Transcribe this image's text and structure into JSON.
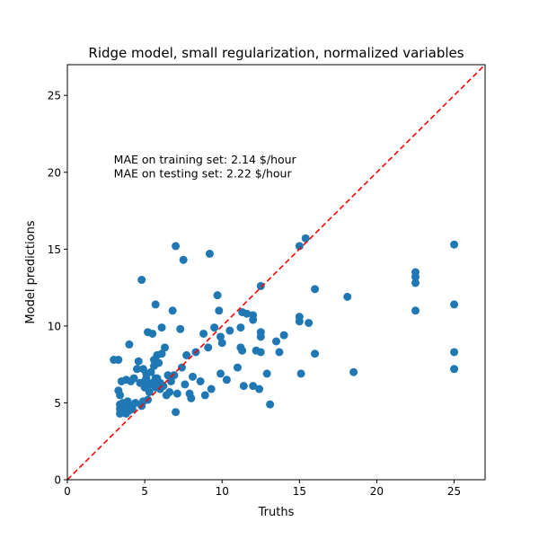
{
  "chart_data": {
    "type": "scatter",
    "title": "Ridge model, small regularization, normalized variables",
    "xlabel": "Truths",
    "ylabel": "Model predictions",
    "xlim": [
      0,
      27
    ],
    "ylim": [
      0,
      27
    ],
    "xticks": [
      0,
      5,
      10,
      15,
      20,
      25
    ],
    "yticks": [
      0,
      5,
      10,
      15,
      20,
      25
    ],
    "grid": false,
    "point_color": "#1f77b4",
    "reference_line": {
      "style": "dashed",
      "color": "#ff0000",
      "from": [
        0,
        0
      ],
      "to": [
        27,
        27
      ]
    },
    "annotations": [
      {
        "text": "MAE on training set: 2.14 $/hour",
        "x": 3.0,
        "y": 20.8
      },
      {
        "text": "MAE on testing set: 2.22 $/hour",
        "x": 3.0,
        "y": 19.9
      }
    ],
    "points": [
      [
        3.0,
        7.8
      ],
      [
        3.3,
        7.8
      ],
      [
        3.3,
        5.8
      ],
      [
        3.4,
        5.5
      ],
      [
        3.4,
        4.9
      ],
      [
        3.4,
        4.6
      ],
      [
        3.4,
        4.3
      ],
      [
        3.5,
        6.4
      ],
      [
        3.6,
        5.0
      ],
      [
        3.6,
        4.7
      ],
      [
        3.7,
        4.5
      ],
      [
        3.8,
        4.3
      ],
      [
        3.8,
        6.5
      ],
      [
        3.9,
        5.1
      ],
      [
        4.0,
        4.8
      ],
      [
        4.0,
        4.5
      ],
      [
        4.0,
        8.8
      ],
      [
        4.1,
        6.4
      ],
      [
        4.2,
        4.6
      ],
      [
        4.3,
        6.6
      ],
      [
        4.4,
        5.0
      ],
      [
        4.5,
        7.2
      ],
      [
        4.6,
        7.7
      ],
      [
        4.7,
        6.3
      ],
      [
        4.8,
        4.8
      ],
      [
        4.8,
        13.0
      ],
      [
        4.9,
        5.1
      ],
      [
        4.9,
        7.2
      ],
      [
        5.0,
        6.0
      ],
      [
        5.0,
        6.4
      ],
      [
        5.1,
        6.9
      ],
      [
        5.1,
        6.6
      ],
      [
        5.2,
        5.2
      ],
      [
        5.2,
        9.6
      ],
      [
        5.3,
        5.7
      ],
      [
        5.4,
        6.2
      ],
      [
        5.4,
        7.0
      ],
      [
        5.5,
        9.5
      ],
      [
        5.5,
        6.3
      ],
      [
        5.6,
        7.4
      ],
      [
        5.6,
        7.8
      ],
      [
        5.7,
        6.6
      ],
      [
        5.7,
        6.0
      ],
      [
        5.7,
        11.4
      ],
      [
        5.8,
        8.1
      ],
      [
        5.8,
        6.6
      ],
      [
        5.9,
        7.6
      ],
      [
        6.0,
        6.3
      ],
      [
        6.0,
        5.9
      ],
      [
        6.1,
        9.9
      ],
      [
        6.1,
        8.2
      ],
      [
        6.2,
        6.1
      ],
      [
        6.3,
        8.6
      ],
      [
        6.4,
        5.5
      ],
      [
        6.5,
        6.8
      ],
      [
        6.6,
        5.7
      ],
      [
        6.7,
        6.4
      ],
      [
        6.8,
        11.0
      ],
      [
        6.9,
        6.8
      ],
      [
        7.0,
        4.4
      ],
      [
        7.0,
        15.2
      ],
      [
        7.1,
        5.6
      ],
      [
        7.3,
        9.8
      ],
      [
        7.4,
        7.3
      ],
      [
        7.5,
        14.3
      ],
      [
        7.6,
        6.2
      ],
      [
        7.7,
        8.1
      ],
      [
        7.9,
        5.6
      ],
      [
        8.0,
        5.3
      ],
      [
        8.1,
        6.7
      ],
      [
        8.3,
        8.3
      ],
      [
        8.6,
        6.4
      ],
      [
        8.8,
        9.5
      ],
      [
        8.9,
        5.5
      ],
      [
        9.1,
        8.6
      ],
      [
        9.2,
        14.7
      ],
      [
        9.3,
        5.9
      ],
      [
        9.5,
        9.9
      ],
      [
        9.7,
        12.0
      ],
      [
        9.8,
        11.0
      ],
      [
        9.9,
        9.3
      ],
      [
        9.9,
        6.9
      ],
      [
        10.0,
        8.9
      ],
      [
        10.3,
        6.5
      ],
      [
        10.5,
        9.7
      ],
      [
        11.0,
        7.3
      ],
      [
        11.2,
        8.6
      ],
      [
        11.2,
        9.9
      ],
      [
        11.3,
        8.4
      ],
      [
        11.3,
        10.9
      ],
      [
        11.4,
        6.1
      ],
      [
        11.6,
        10.8
      ],
      [
        12.0,
        10.4
      ],
      [
        12.0,
        10.7
      ],
      [
        12.0,
        6.1
      ],
      [
        12.2,
        8.4
      ],
      [
        12.4,
        5.9
      ],
      [
        12.5,
        9.6
      ],
      [
        12.5,
        9.3
      ],
      [
        12.5,
        8.3
      ],
      [
        12.5,
        12.6
      ],
      [
        12.9,
        6.9
      ],
      [
        13.1,
        4.9
      ],
      [
        13.5,
        9.0
      ],
      [
        13.7,
        8.3
      ],
      [
        14.0,
        9.4
      ],
      [
        15.0,
        15.2
      ],
      [
        15.0,
        10.3
      ],
      [
        15.0,
        10.6
      ],
      [
        15.1,
        6.9
      ],
      [
        15.4,
        15.7
      ],
      [
        15.6,
        10.2
      ],
      [
        16.0,
        12.4
      ],
      [
        16.0,
        8.2
      ],
      [
        18.1,
        11.9
      ],
      [
        18.5,
        7.0
      ],
      [
        22.5,
        13.5
      ],
      [
        22.5,
        13.2
      ],
      [
        22.5,
        12.8
      ],
      [
        22.5,
        11.0
      ],
      [
        25.0,
        15.3
      ],
      [
        25.0,
        11.4
      ],
      [
        25.0,
        8.3
      ],
      [
        25.0,
        7.2
      ]
    ]
  }
}
